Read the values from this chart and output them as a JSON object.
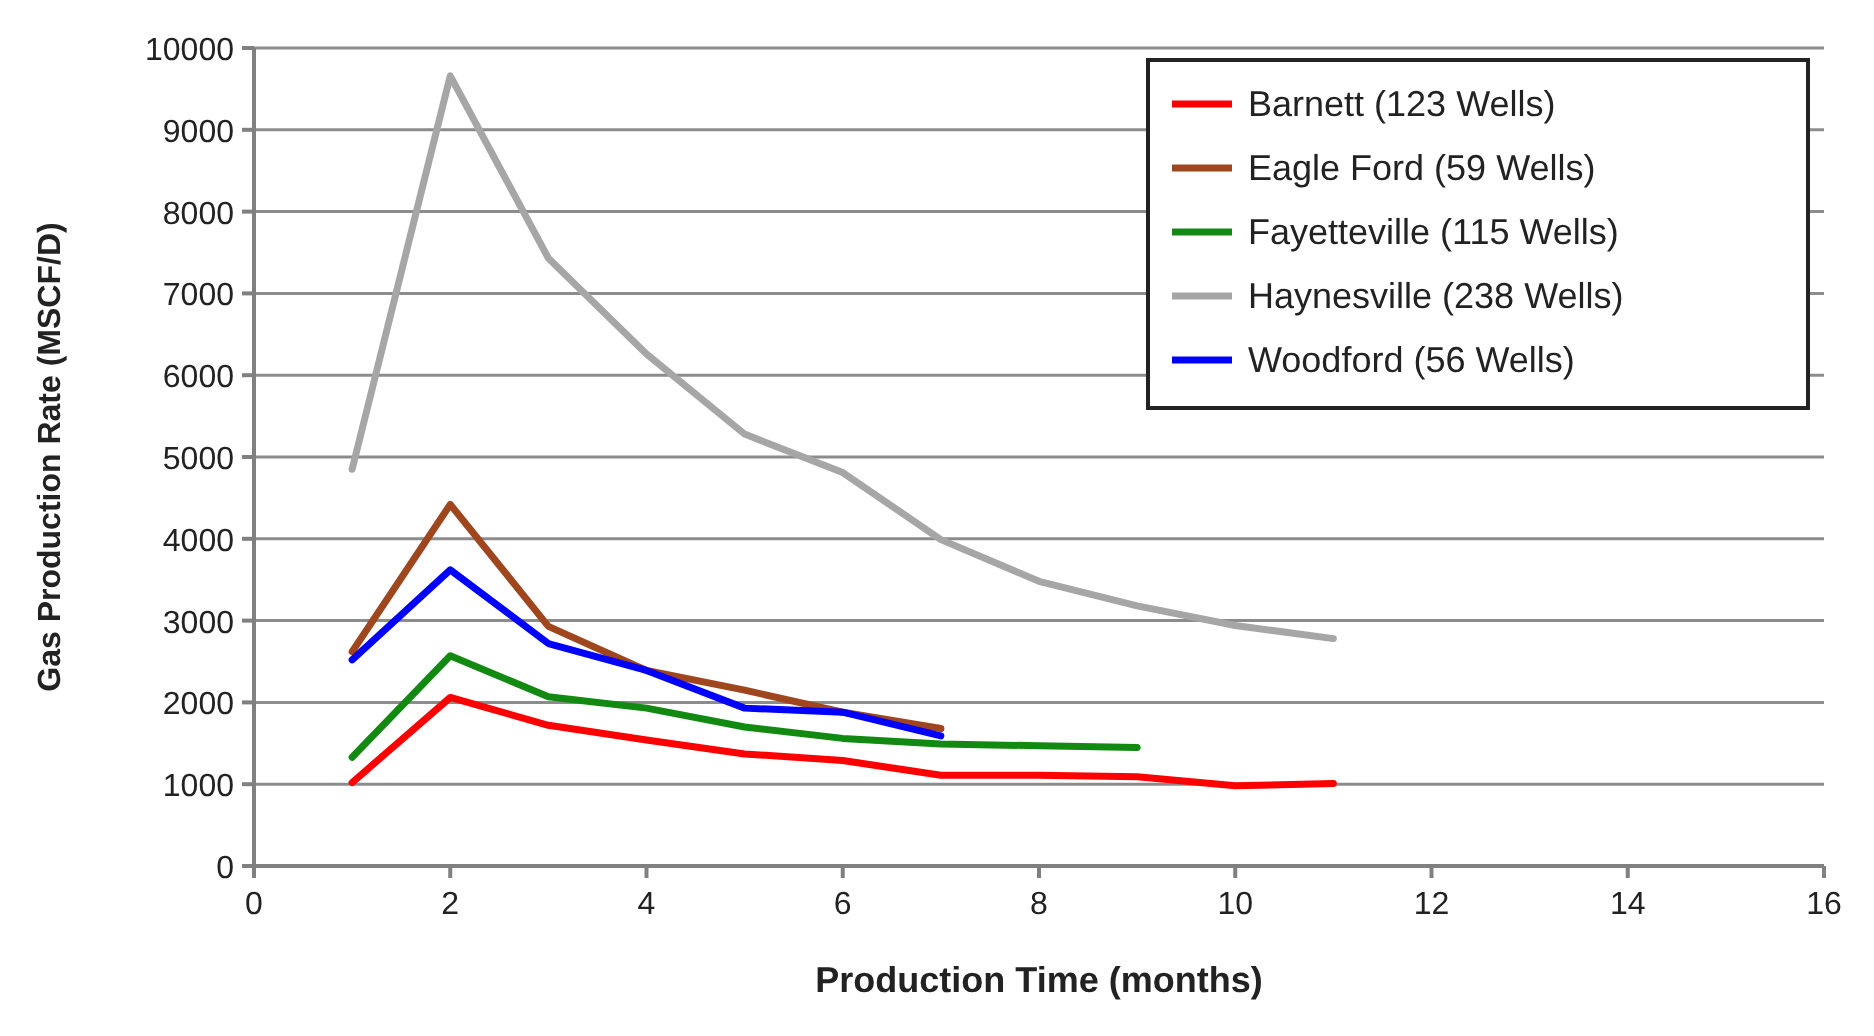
{
  "chart_data": {
    "type": "line",
    "xlabel": "Production Time (months)",
    "ylabel": "Gas Production Rate (MSCF/D)",
    "xlim": [
      0,
      16
    ],
    "xticks": [
      0,
      2,
      4,
      6,
      8,
      10,
      12,
      14,
      16
    ],
    "ylim": [
      0,
      10000
    ],
    "yticks": [
      0,
      1000,
      2000,
      3000,
      4000,
      5000,
      6000,
      7000,
      8000,
      9000,
      10000
    ],
    "grid": "y",
    "legend": "top right",
    "marker": "none",
    "line_style": "solid",
    "series": [
      {
        "name": "Barnett (123 Wells)",
        "color": "#ff0000",
        "x": [
          1,
          2,
          3,
          4,
          5,
          6,
          7,
          8,
          9,
          10,
          11
        ],
        "values": [
          1020,
          2060,
          1720,
          1540,
          1370,
          1290,
          1110,
          1110,
          1090,
          980,
          1010
        ]
      },
      {
        "name": "Eagle Ford (59 Wells)",
        "color": "#a0461e",
        "x": [
          1,
          2,
          3,
          4,
          5,
          6,
          7
        ],
        "values": [
          2620,
          4420,
          2930,
          2390,
          2150,
          1880,
          1680
        ]
      },
      {
        "name": "Fayetteville (115 Wells)",
        "color": "#128a12",
        "x": [
          1,
          2,
          3,
          4,
          5,
          6,
          7,
          8,
          9
        ],
        "values": [
          1330,
          2570,
          2070,
          1930,
          1700,
          1560,
          1490,
          1470,
          1450
        ]
      },
      {
        "name": "Haynesville (238 Wells)",
        "color": "#a6a6a6",
        "x": [
          1,
          2,
          3,
          4,
          5,
          6,
          7,
          8,
          9,
          10,
          11
        ],
        "values": [
          4850,
          9660,
          7430,
          6260,
          5280,
          4810,
          3990,
          3480,
          3180,
          2940,
          2780
        ]
      },
      {
        "name": "Woodford (56 Wells)",
        "color": "#0000ff",
        "x": [
          1,
          2,
          3,
          4,
          5,
          6,
          7
        ],
        "values": [
          2520,
          3620,
          2720,
          2390,
          1930,
          1880,
          1590
        ]
      }
    ]
  }
}
